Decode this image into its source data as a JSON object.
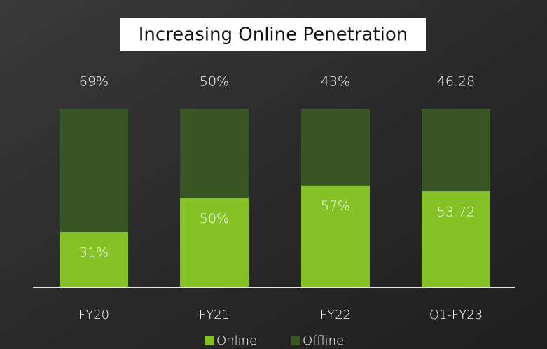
{
  "chart_data": {
    "type": "stacked_bar",
    "title": "Increasing Online Penetration",
    "categories": [
      "FY20",
      "FY21",
      "FY22",
      "Q1-FY23"
    ],
    "series": [
      {
        "name": "Online",
        "color": "#84c225",
        "values": [
          31,
          50,
          57,
          53.72
        ],
        "value_labels": [
          "31%",
          "50%",
          "57%",
          "53.72"
        ]
      },
      {
        "name": "Offline",
        "color": "#375623",
        "values": [
          69,
          50,
          43,
          46.28
        ],
        "value_labels": [
          "69%",
          "50%",
          "43%",
          "46.28"
        ]
      }
    ]
  }
}
